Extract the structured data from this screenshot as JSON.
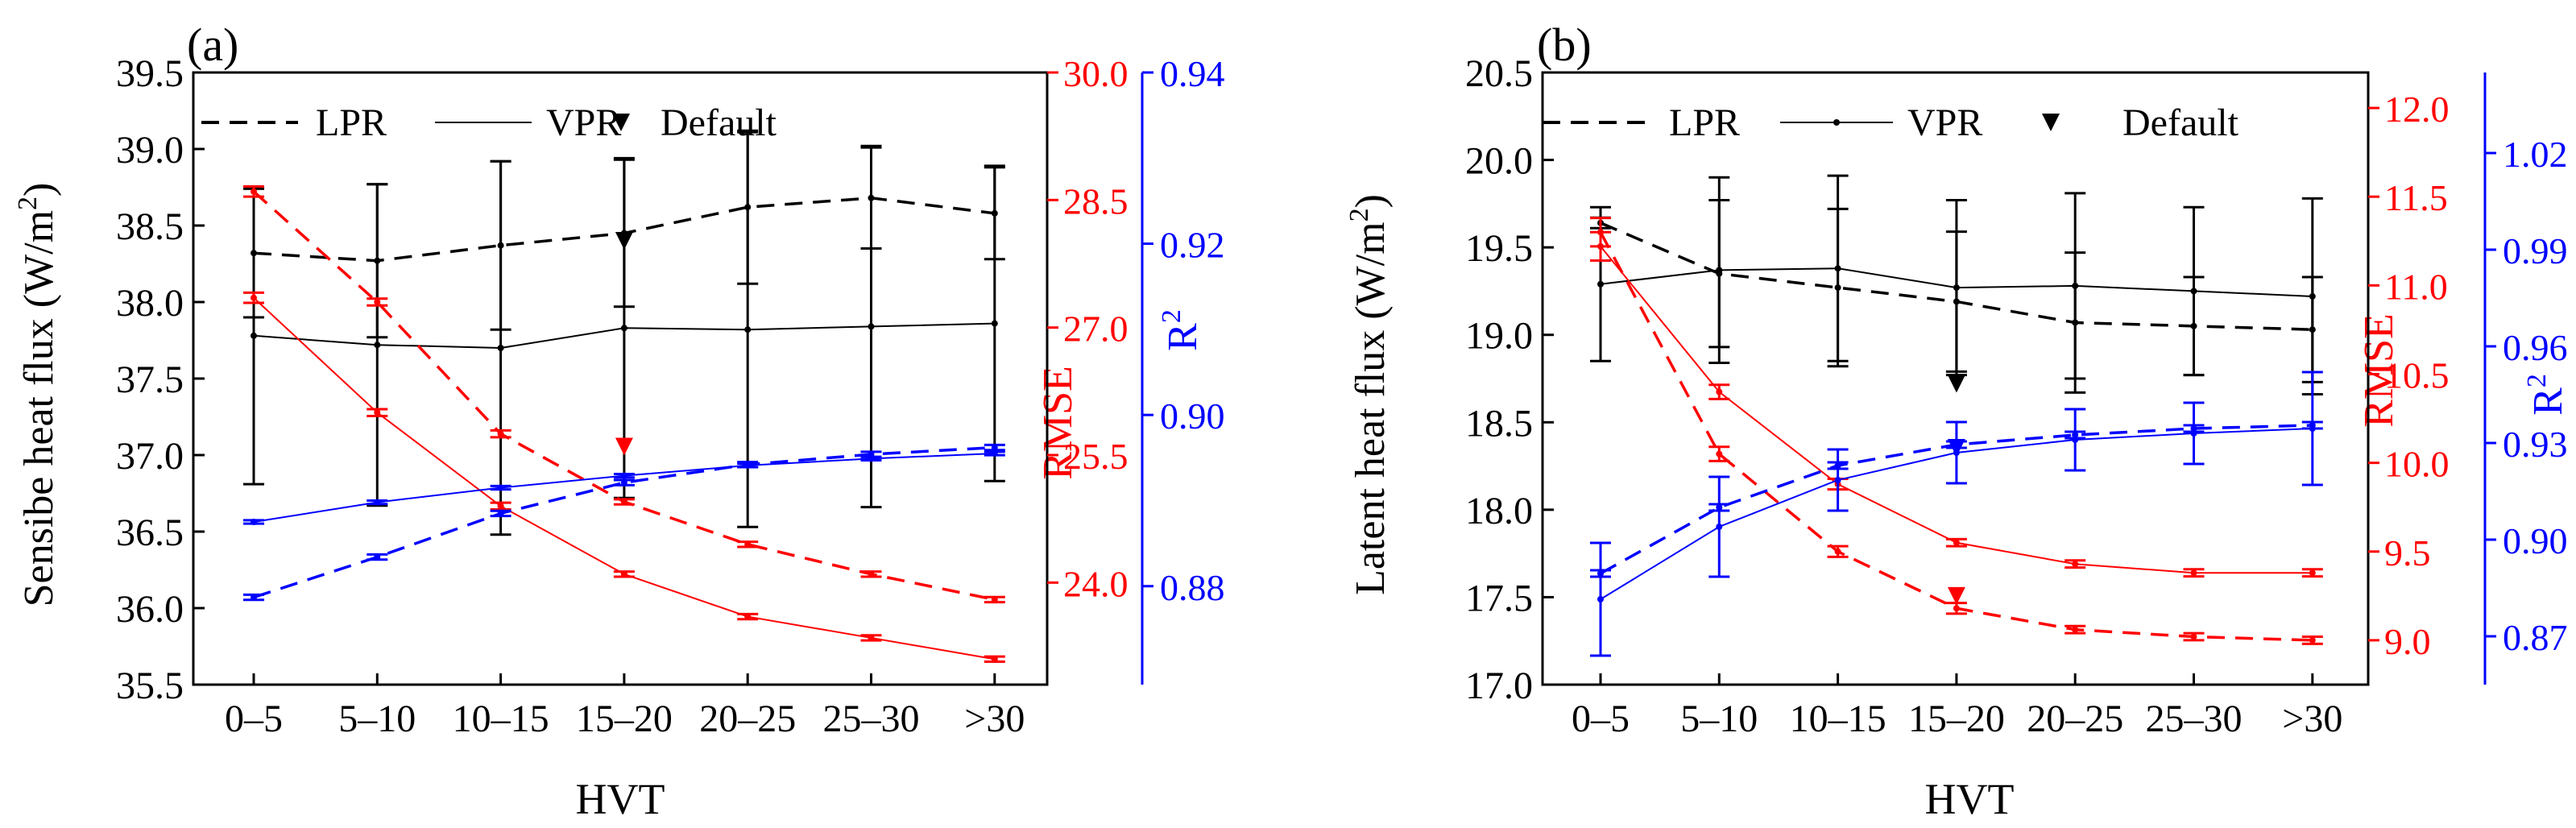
{
  "chart_data": [
    {
      "type": "line",
      "panel_label": "(a)",
      "categories": [
        "0–5",
        "5–10",
        "10–15",
        "15–20",
        "20–25",
        "25–30",
        ">30"
      ],
      "xlabel": "HVT",
      "ylabel_main": "Sensibe heat flux (W/m",
      "ylabel_sup": "2",
      "ylabel_close": ")",
      "ylim": [
        35.5,
        39.5
      ],
      "yticks": [
        "35.5",
        "36.0",
        "36.5",
        "37.0",
        "37.5",
        "38.0",
        "38.5",
        "39.0",
        "39.5"
      ],
      "rmse_label": "RMSE",
      "rmse_lim": [
        22.8,
        30.0
      ],
      "rmse_ticks": [
        "24.0",
        "25.5",
        "27.0",
        "28.5",
        "30.0"
      ],
      "r2_label": "R",
      "r2_sup": "2",
      "r2_lim": [
        0.8685,
        0.94
      ],
      "r2_ticks": [
        "0.88",
        "0.90",
        "0.92",
        "0.94"
      ],
      "legend": {
        "lpr": "LPR",
        "vpr": "VPR",
        "default": "Default"
      },
      "flux": {
        "lpr": {
          "values": [
            38.32,
            38.27,
            38.37,
            38.45,
            38.62,
            38.68,
            38.58
          ],
          "err": [
            0.42,
            0.5,
            0.55,
            0.48,
            0.5,
            0.33,
            0.3
          ]
        },
        "vpr": {
          "values": [
            37.78,
            37.72,
            37.7,
            37.83,
            37.82,
            37.84,
            37.86
          ],
          "err": [
            0.97,
            1.05,
            1.22,
            1.11,
            1.29,
            1.18,
            1.03
          ]
        },
        "default": {
          "index": 3,
          "value": 38.4
        }
      },
      "rmse": {
        "lpr": {
          "values": [
            28.6,
            27.3,
            25.75,
            24.95,
            24.45,
            24.1,
            23.8
          ],
          "err": [
            0.06,
            0.04,
            0.04,
            0.03,
            0.03,
            0.03,
            0.03
          ]
        },
        "vpr": {
          "values": [
            27.35,
            26.0,
            24.9,
            24.1,
            23.6,
            23.35,
            23.1
          ],
          "err": [
            0.06,
            0.04,
            0.04,
            0.03,
            0.03,
            0.03,
            0.03
          ]
        },
        "default": {
          "index": 3,
          "value": 25.6
        }
      },
      "r2": {
        "lpr": {
          "values": [
            0.8787,
            0.8834,
            0.8885,
            0.8921,
            0.8942,
            0.8954,
            0.8962
          ],
          "err": [
            0.0003,
            0.0003,
            0.0003,
            0.0003,
            0.0003,
            0.0003,
            0.0003
          ]
        },
        "vpr": {
          "values": [
            0.8875,
            0.8898,
            0.8915,
            0.8929,
            0.8941,
            0.8949,
            0.8955
          ],
          "err": [
            0.0002,
            0.0002,
            0.0002,
            0.0002,
            0.0002,
            0.0002,
            0.0002
          ]
        }
      },
      "colors": {
        "flux": "#000000",
        "rmse": "#ff0000",
        "r2": "#0000ff"
      }
    },
    {
      "type": "line",
      "panel_label": "(b)",
      "categories": [
        "0–5",
        "5–10",
        "10–15",
        "15–20",
        "20–25",
        "25–30",
        ">30"
      ],
      "xlabel": "HVT",
      "ylabel_main": "Latent heat flux (W/m",
      "ylabel_sup": "2",
      "ylabel_close": ")",
      "ylim": [
        17.0,
        20.5
      ],
      "yticks": [
        "17.0",
        "17.5",
        "18.0",
        "18.5",
        "19.0",
        "19.5",
        "20.0",
        "20.5"
      ],
      "rmse_label": "RMSE",
      "rmse_lim": [
        8.75,
        12.2
      ],
      "rmse_ticks": [
        "9.0",
        "9.5",
        "10.0",
        "10.5",
        "11.0",
        "11.5",
        "12.0"
      ],
      "r2_label": "R",
      "r2_sup": "2",
      "r2_lim": [
        0.855,
        1.045
      ],
      "r2_ticks": [
        "0.87",
        "0.90",
        "0.93",
        "0.96",
        "0.99",
        "1.02"
      ],
      "legend": {
        "lpr": "LPR",
        "vpr": "VPR",
        "default": "Default"
      },
      "flux": {
        "lpr": {
          "values": [
            19.64,
            19.35,
            19.27,
            19.19,
            19.07,
            19.05,
            19.03
          ],
          "err": [
            0.03,
            0.42,
            0.45,
            0.4,
            0.4,
            0.28,
            0.3
          ]
        },
        "vpr": {
          "values": [
            19.29,
            19.37,
            19.38,
            19.27,
            19.28,
            19.25,
            19.22
          ],
          "err": [
            0.44,
            0.53,
            0.53,
            0.5,
            0.53,
            0.48,
            0.56
          ]
        },
        "default": {
          "index": 3,
          "value": 18.72
        }
      },
      "rmse": {
        "lpr": {
          "values": [
            11.3,
            10.05,
            9.5,
            9.18,
            9.06,
            9.02,
            9.0
          ],
          "err": [
            0.08,
            0.04,
            0.03,
            0.03,
            0.02,
            0.02,
            0.02
          ]
        },
        "vpr": {
          "values": [
            11.22,
            10.4,
            9.88,
            9.55,
            9.43,
            9.38,
            9.38
          ],
          "err": [
            0.08,
            0.04,
            0.03,
            0.02,
            0.02,
            0.02,
            0.02
          ]
        },
        "default": {
          "index": 3,
          "value": 9.25
        }
      },
      "r2": {
        "lpr": {
          "values": [
            0.8895,
            0.91,
            0.923,
            0.9295,
            0.9325,
            0.9345,
            0.9355
          ],
          "err": [
            0.001,
            0.001,
            0.001,
            0.001,
            0.001,
            0.001,
            0.001
          ]
        },
        "vpr": {
          "values": [
            0.8815,
            0.904,
            0.9185,
            0.927,
            0.931,
            0.933,
            0.9345
          ],
          "err": [
            0.0175,
            0.0155,
            0.0095,
            0.0095,
            0.0095,
            0.0095,
            0.0175
          ]
        },
        "default": {
          "index": 3,
          "value": 0.9285
        }
      },
      "colors": {
        "flux": "#000000",
        "rmse": "#ff0000",
        "r2": "#0000ff"
      }
    }
  ]
}
